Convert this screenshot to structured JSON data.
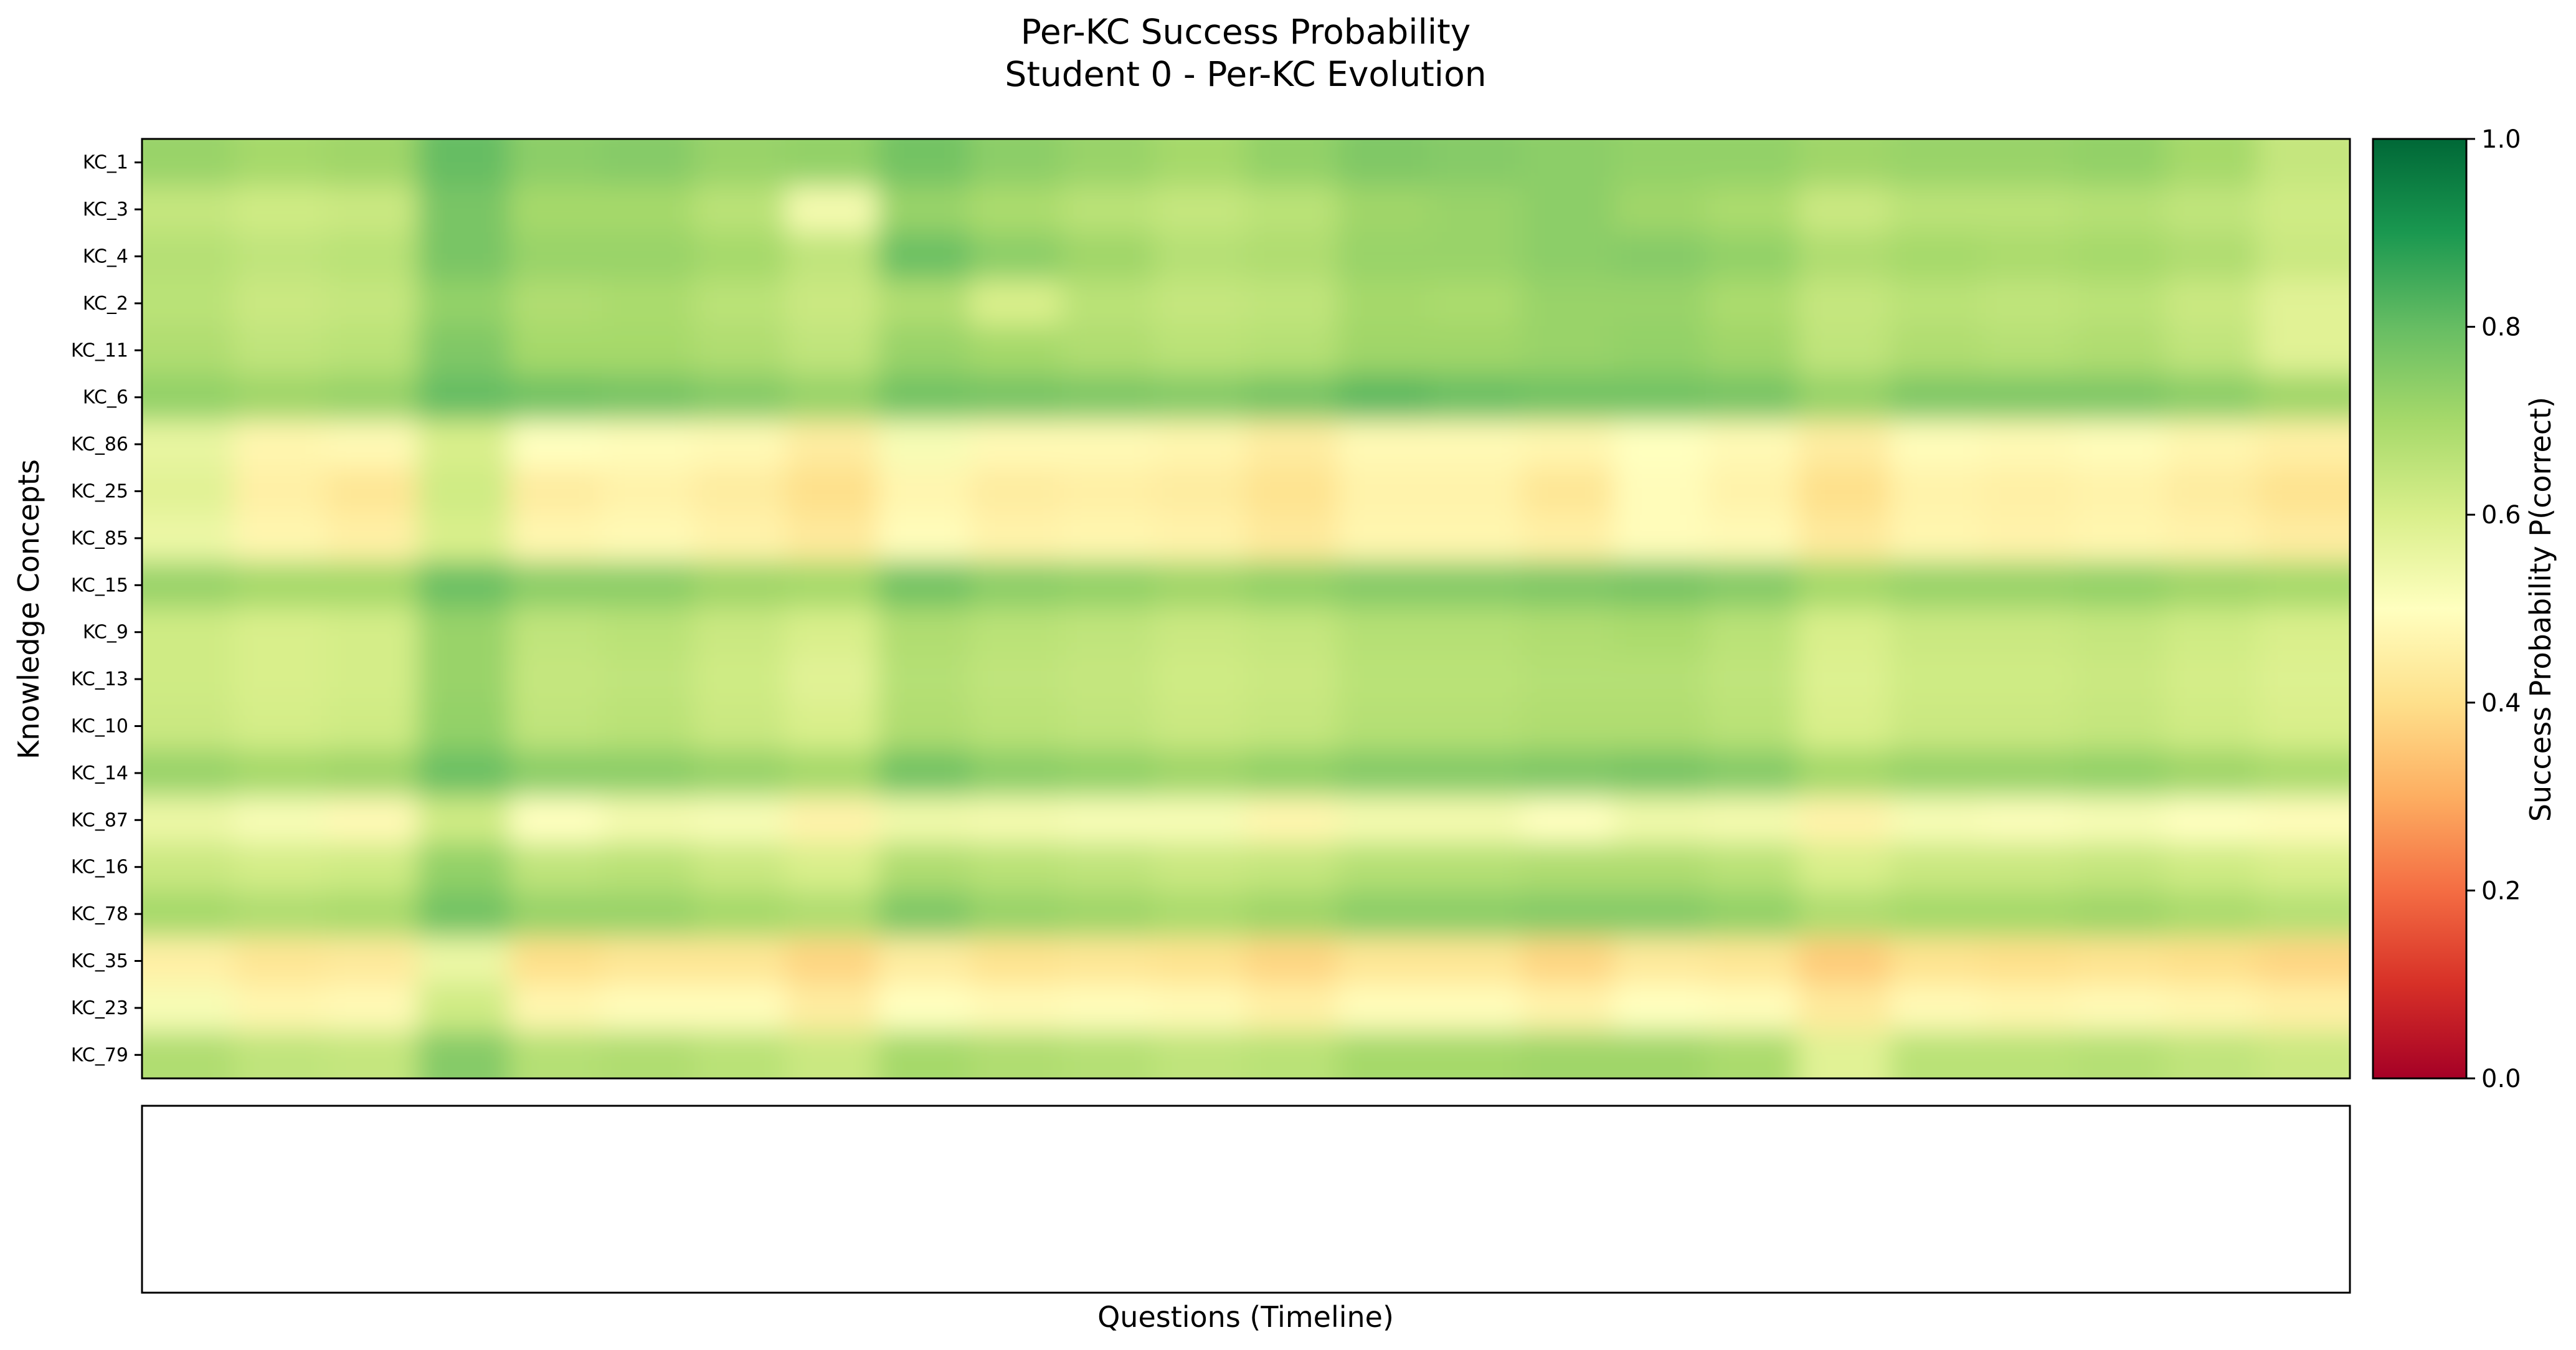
{
  "chart_data": {
    "type": "heatmap",
    "title": "Per-KC Success Probability",
    "subtitle": "Student 0 - Per-KC Evolution",
    "ylabel": "Knowledge Concepts",
    "xlabel": "Questions (Timeline)",
    "colorbar": {
      "label": "Success Probability P(correct)",
      "range": [
        0,
        1
      ],
      "ticks": [
        "0.0",
        "0.2",
        "0.4",
        "0.6",
        "0.8",
        "1.0"
      ],
      "colormap": "RdYlGn"
    },
    "rows": [
      "KC_1",
      "KC_3",
      "KC_4",
      "KC_2",
      "KC_11",
      "KC_6",
      "KC_86",
      "KC_25",
      "KC_85",
      "KC_15",
      "KC_9",
      "KC_13",
      "KC_10",
      "KC_14",
      "KC_87",
      "KC_16",
      "KC_78",
      "KC_35",
      "KC_23",
      "KC_79"
    ],
    "n_columns": 24,
    "values": [
      [
        0.72,
        0.7,
        0.71,
        0.8,
        0.74,
        0.75,
        0.72,
        0.73,
        0.78,
        0.74,
        0.72,
        0.7,
        0.73,
        0.76,
        0.75,
        0.74,
        0.73,
        0.73,
        0.71,
        0.72,
        0.72,
        0.73,
        0.7,
        0.64
      ],
      [
        0.64,
        0.62,
        0.63,
        0.77,
        0.7,
        0.7,
        0.66,
        0.53,
        0.72,
        0.69,
        0.66,
        0.64,
        0.66,
        0.71,
        0.72,
        0.74,
        0.71,
        0.69,
        0.63,
        0.66,
        0.66,
        0.67,
        0.65,
        0.62
      ],
      [
        0.67,
        0.65,
        0.66,
        0.77,
        0.72,
        0.72,
        0.7,
        0.65,
        0.79,
        0.74,
        0.71,
        0.67,
        0.68,
        0.72,
        0.72,
        0.74,
        0.75,
        0.73,
        0.68,
        0.7,
        0.69,
        0.7,
        0.68,
        0.63
      ],
      [
        0.66,
        0.63,
        0.64,
        0.73,
        0.68,
        0.69,
        0.66,
        0.63,
        0.68,
        0.6,
        0.66,
        0.64,
        0.65,
        0.7,
        0.69,
        0.72,
        0.72,
        0.69,
        0.64,
        0.66,
        0.65,
        0.66,
        0.63,
        0.58
      ],
      [
        0.68,
        0.65,
        0.66,
        0.76,
        0.7,
        0.7,
        0.68,
        0.65,
        0.72,
        0.7,
        0.68,
        0.66,
        0.67,
        0.71,
        0.71,
        0.72,
        0.73,
        0.71,
        0.65,
        0.68,
        0.67,
        0.68,
        0.65,
        0.58
      ],
      [
        0.73,
        0.71,
        0.72,
        0.8,
        0.78,
        0.77,
        0.75,
        0.72,
        0.78,
        0.77,
        0.76,
        0.75,
        0.77,
        0.81,
        0.79,
        0.78,
        0.78,
        0.77,
        0.72,
        0.76,
        0.76,
        0.76,
        0.74,
        0.71
      ],
      [
        0.56,
        0.47,
        0.48,
        0.6,
        0.5,
        0.49,
        0.48,
        0.44,
        0.52,
        0.48,
        0.48,
        0.47,
        0.44,
        0.48,
        0.48,
        0.47,
        0.5,
        0.48,
        0.44,
        0.49,
        0.48,
        0.49,
        0.47,
        0.45
      ],
      [
        0.58,
        0.45,
        0.42,
        0.62,
        0.44,
        0.46,
        0.44,
        0.4,
        0.47,
        0.44,
        0.45,
        0.44,
        0.41,
        0.46,
        0.46,
        0.42,
        0.49,
        0.46,
        0.4,
        0.46,
        0.45,
        0.46,
        0.44,
        0.41
      ],
      [
        0.55,
        0.47,
        0.45,
        0.6,
        0.47,
        0.48,
        0.46,
        0.43,
        0.49,
        0.46,
        0.47,
        0.46,
        0.43,
        0.47,
        0.47,
        0.45,
        0.49,
        0.48,
        0.43,
        0.47,
        0.46,
        0.47,
        0.46,
        0.44
      ],
      [
        0.72,
        0.7,
        0.7,
        0.79,
        0.74,
        0.74,
        0.71,
        0.7,
        0.78,
        0.74,
        0.73,
        0.71,
        0.73,
        0.75,
        0.75,
        0.76,
        0.77,
        0.75,
        0.7,
        0.72,
        0.72,
        0.73,
        0.71,
        0.7
      ],
      [
        0.62,
        0.6,
        0.61,
        0.72,
        0.65,
        0.66,
        0.63,
        0.6,
        0.68,
        0.66,
        0.65,
        0.63,
        0.64,
        0.67,
        0.67,
        0.68,
        0.69,
        0.66,
        0.6,
        0.63,
        0.63,
        0.64,
        0.62,
        0.6
      ],
      [
        0.62,
        0.6,
        0.61,
        0.72,
        0.64,
        0.65,
        0.62,
        0.58,
        0.67,
        0.65,
        0.64,
        0.62,
        0.63,
        0.66,
        0.66,
        0.67,
        0.67,
        0.65,
        0.59,
        0.62,
        0.62,
        0.63,
        0.61,
        0.59
      ],
      [
        0.63,
        0.61,
        0.62,
        0.73,
        0.65,
        0.66,
        0.63,
        0.6,
        0.68,
        0.66,
        0.65,
        0.63,
        0.64,
        0.67,
        0.67,
        0.68,
        0.68,
        0.66,
        0.6,
        0.63,
        0.63,
        0.64,
        0.62,
        0.6
      ],
      [
        0.72,
        0.7,
        0.71,
        0.79,
        0.74,
        0.74,
        0.72,
        0.7,
        0.78,
        0.74,
        0.73,
        0.71,
        0.73,
        0.75,
        0.75,
        0.76,
        0.77,
        0.75,
        0.7,
        0.72,
        0.72,
        0.73,
        0.71,
        0.69
      ],
      [
        0.55,
        0.52,
        0.48,
        0.62,
        0.5,
        0.53,
        0.52,
        0.46,
        0.54,
        0.53,
        0.52,
        0.52,
        0.47,
        0.53,
        0.53,
        0.5,
        0.54,
        0.53,
        0.46,
        0.52,
        0.51,
        0.52,
        0.5,
        0.49
      ],
      [
        0.63,
        0.61,
        0.62,
        0.73,
        0.65,
        0.66,
        0.63,
        0.6,
        0.68,
        0.66,
        0.65,
        0.63,
        0.64,
        0.67,
        0.67,
        0.68,
        0.68,
        0.66,
        0.6,
        0.63,
        0.63,
        0.64,
        0.62,
        0.6
      ],
      [
        0.7,
        0.68,
        0.69,
        0.78,
        0.72,
        0.72,
        0.7,
        0.68,
        0.76,
        0.72,
        0.71,
        0.69,
        0.71,
        0.74,
        0.74,
        0.75,
        0.75,
        0.73,
        0.68,
        0.7,
        0.7,
        0.71,
        0.69,
        0.67
      ],
      [
        0.45,
        0.42,
        0.43,
        0.55,
        0.4,
        0.42,
        0.42,
        0.38,
        0.44,
        0.41,
        0.42,
        0.41,
        0.38,
        0.42,
        0.42,
        0.38,
        0.43,
        0.42,
        0.36,
        0.41,
        0.4,
        0.41,
        0.4,
        0.38
      ],
      [
        0.52,
        0.47,
        0.48,
        0.62,
        0.47,
        0.49,
        0.49,
        0.44,
        0.5,
        0.48,
        0.49,
        0.48,
        0.45,
        0.49,
        0.49,
        0.46,
        0.5,
        0.49,
        0.43,
        0.48,
        0.47,
        0.48,
        0.47,
        0.45
      ],
      [
        0.68,
        0.65,
        0.64,
        0.75,
        0.67,
        0.68,
        0.66,
        0.63,
        0.7,
        0.68,
        0.67,
        0.65,
        0.66,
        0.7,
        0.7,
        0.71,
        0.71,
        0.69,
        0.58,
        0.66,
        0.66,
        0.67,
        0.65,
        0.63
      ]
    ]
  }
}
